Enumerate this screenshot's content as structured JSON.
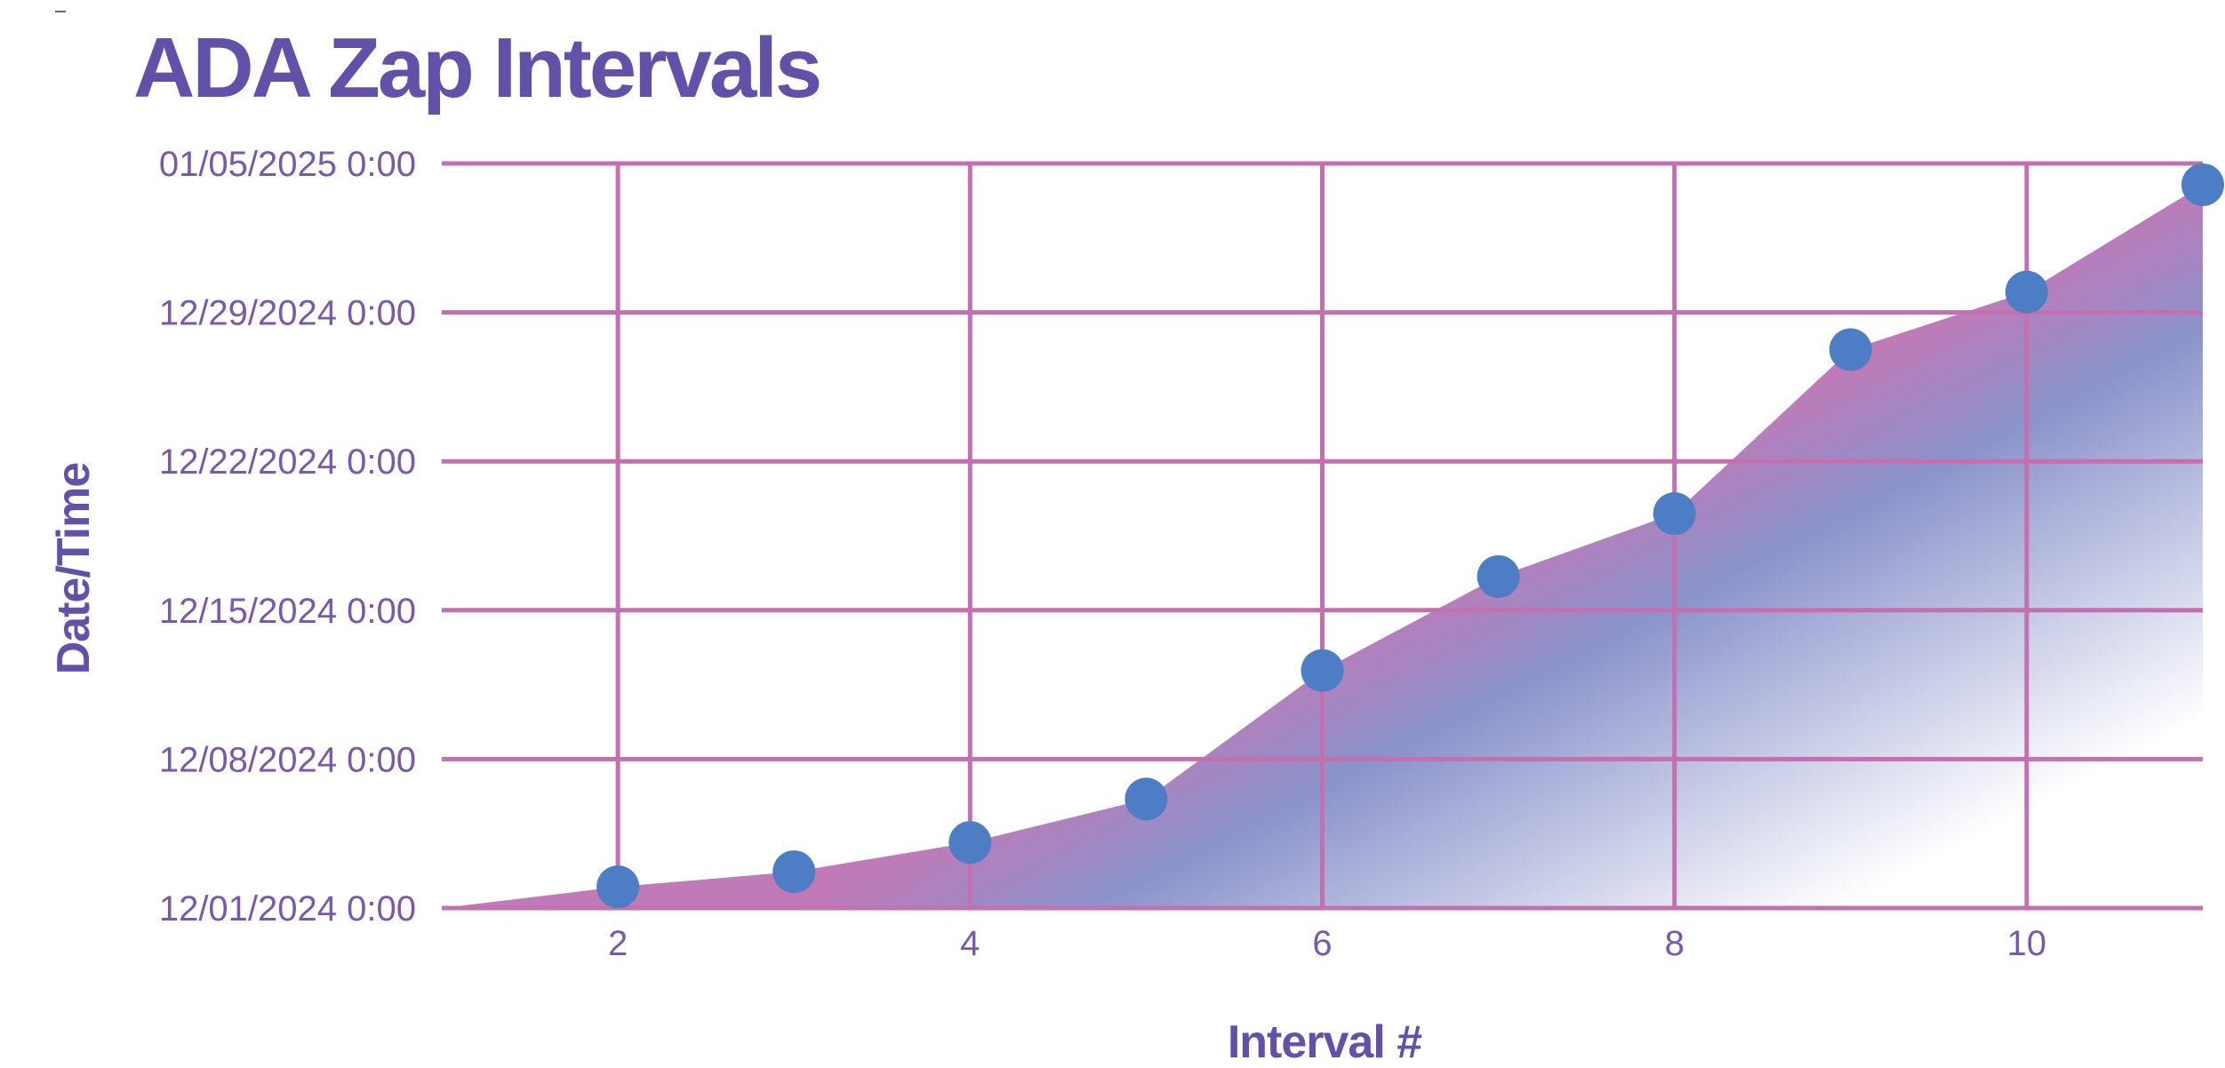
{
  "chart_data": {
    "type": "area",
    "title": "ADA Zap Intervals",
    "xlabel": "Interval #",
    "ylabel": "Date/Time",
    "x": [
      2,
      3,
      4,
      5,
      6,
      7,
      8,
      9,
      10,
      11
    ],
    "y": [
      "2024-12-02 00:00",
      "2024-12-02 17:00",
      "2024-12-04 02:00",
      "2024-12-06 03:00",
      "2024-12-12 04:00",
      "2024-12-16 14:00",
      "2024-12-19 13:00",
      "2024-12-27 06:00",
      "2024-12-29 23:00",
      "2025-01-04 00:00"
    ],
    "area_start": {
      "x": 1,
      "y": "2024-12-01 00:00"
    },
    "xlim": [
      1,
      11
    ],
    "ylim": [
      "2024-12-01 00:00",
      "2025-01-05 00:00"
    ],
    "x_ticks": [
      2,
      4,
      6,
      8,
      10
    ],
    "y_ticks": [
      "12/01/2024 0:00",
      "12/08/2024 0:00",
      "12/15/2024 0:00",
      "12/22/2024 0:00",
      "12/29/2024 0:00",
      "01/05/2025 0:00"
    ],
    "grid": true,
    "legend": "none",
    "colors": {
      "title": "#6350a8",
      "tick_text": "#7a5aa8",
      "grid": "#c46fb0",
      "marker": "#4d7dc4",
      "area_top": "#c07ab8",
      "area_mid": "#8a93cb",
      "area_fade": "#ffffff"
    }
  }
}
